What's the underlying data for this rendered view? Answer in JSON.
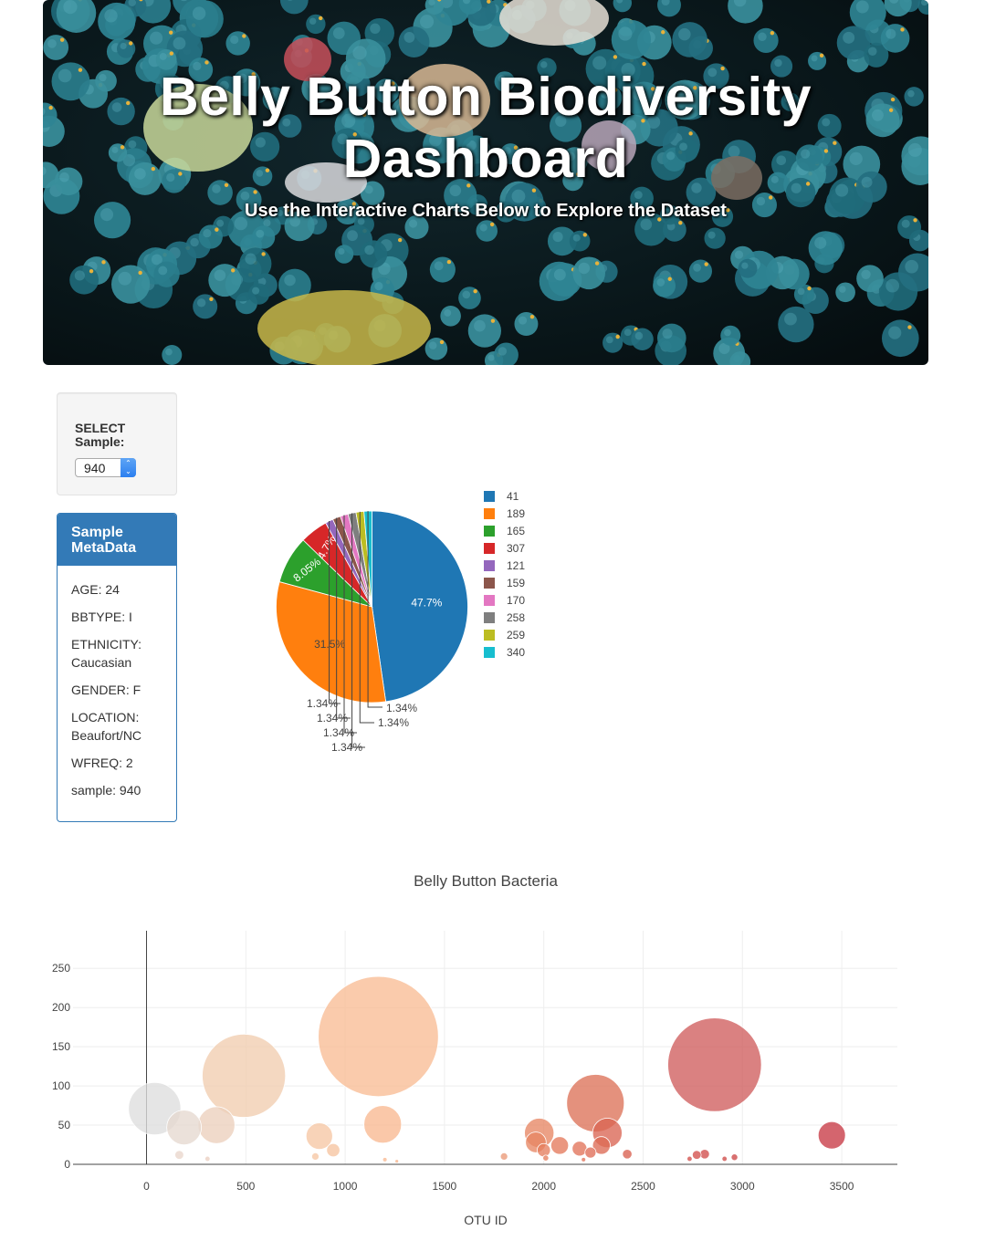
{
  "header": {
    "title": "Belly Button Biodiversity Dashboard",
    "subtitle": "Use the Interactive Charts Below to Explore the Dataset"
  },
  "select": {
    "label": "SELECT Sample:",
    "value": "940"
  },
  "metadata": {
    "title": "Sample MetaData",
    "rows": [
      "AGE: 24",
      "BBTYPE: I",
      "ETHNICITY: Caucasian",
      "GENDER: F",
      "LOCATION: Beaufort/NC",
      "WFREQ: 2",
      "sample: 940"
    ]
  },
  "chart_data": [
    {
      "type": "pie",
      "title": "",
      "labels": [
        "41",
        "189",
        "165",
        "307",
        "121",
        "159",
        "170",
        "258",
        "259",
        "340"
      ],
      "values": [
        47.7,
        31.5,
        8.05,
        4.7,
        1.34,
        1.34,
        1.34,
        1.34,
        1.34,
        1.34
      ],
      "value_labels": [
        "47.7%",
        "31.5%",
        "8.05%",
        "4.7%",
        "1.34%",
        "1.34%",
        "1.34%",
        "1.34%",
        "1.34%",
        "1.34%"
      ],
      "colors": [
        "#1f77b4",
        "#ff7f0e",
        "#2ca02c",
        "#d62728",
        "#9467bd",
        "#8c564b",
        "#e377c2",
        "#7f7f7f",
        "#bcbd22",
        "#17becf"
      ],
      "legend_position": "right"
    },
    {
      "type": "scatter",
      "title": "Belly Button Bacteria",
      "xlabel": "OTU ID",
      "ylabel": "",
      "xlim": [
        -370,
        3780
      ],
      "ylim": [
        0,
        298
      ],
      "xticks": [
        0,
        500,
        1000,
        1500,
        2000,
        2500,
        3000,
        3500
      ],
      "yticks": [
        0,
        50,
        100,
        150,
        200,
        250
      ],
      "grid": true,
      "colorscale": "Reds",
      "points": [
        {
          "x": 41,
          "y": 71,
          "c": "#dedede"
        },
        {
          "x": 189,
          "y": 47,
          "c": "#e6d8d0"
        },
        {
          "x": 165,
          "y": 12,
          "c": "#e9d6cc"
        },
        {
          "x": 307,
          "y": 7,
          "c": "#ebd0c1"
        },
        {
          "x": 352,
          "y": 50,
          "c": "#ecd0bd"
        },
        {
          "x": 490,
          "y": 113,
          "c": "#f1cdb0"
        },
        {
          "x": 870,
          "y": 36,
          "c": "#f6c7a4"
        },
        {
          "x": 850,
          "y": 10,
          "c": "#f6c7a4"
        },
        {
          "x": 940,
          "y": 18,
          "c": "#f6c4a0"
        },
        {
          "x": 1167,
          "y": 163,
          "c": "#f9bd95"
        },
        {
          "x": 1189,
          "y": 51,
          "c": "#f8b891"
        },
        {
          "x": 1200,
          "y": 6,
          "c": "#f8b891"
        },
        {
          "x": 1260,
          "y": 4,
          "c": "#f6b48c"
        },
        {
          "x": 1800,
          "y": 10,
          "c": "#eb9a78"
        },
        {
          "x": 1977,
          "y": 40,
          "c": "#e78764"
        },
        {
          "x": 1960,
          "y": 28,
          "c": "#e78764"
        },
        {
          "x": 2000,
          "y": 18,
          "c": "#e67f5f"
        },
        {
          "x": 2010,
          "y": 8,
          "c": "#e67f5f"
        },
        {
          "x": 2080,
          "y": 24,
          "c": "#e47a5c"
        },
        {
          "x": 2180,
          "y": 20,
          "c": "#e1735a"
        },
        {
          "x": 2200,
          "y": 6,
          "c": "#e1735a"
        },
        {
          "x": 2235,
          "y": 15,
          "c": "#df6d57"
        },
        {
          "x": 2260,
          "y": 78,
          "c": "#dc7259"
        },
        {
          "x": 2290,
          "y": 24,
          "c": "#dc6a55"
        },
        {
          "x": 2320,
          "y": 40,
          "c": "#da6553"
        },
        {
          "x": 2420,
          "y": 13,
          "c": "#d86050"
        },
        {
          "x": 2734,
          "y": 7,
          "c": "#d4504c"
        },
        {
          "x": 2770,
          "y": 12,
          "c": "#d3504c"
        },
        {
          "x": 2810,
          "y": 13,
          "c": "#d14d4b"
        },
        {
          "x": 2860,
          "y": 127,
          "c": "#cf5d5d"
        },
        {
          "x": 2910,
          "y": 7,
          "c": "#cf4b49"
        },
        {
          "x": 2960,
          "y": 9,
          "c": "#cd4848"
        },
        {
          "x": 3450,
          "y": 37,
          "c": "#c83a45"
        }
      ]
    }
  ]
}
